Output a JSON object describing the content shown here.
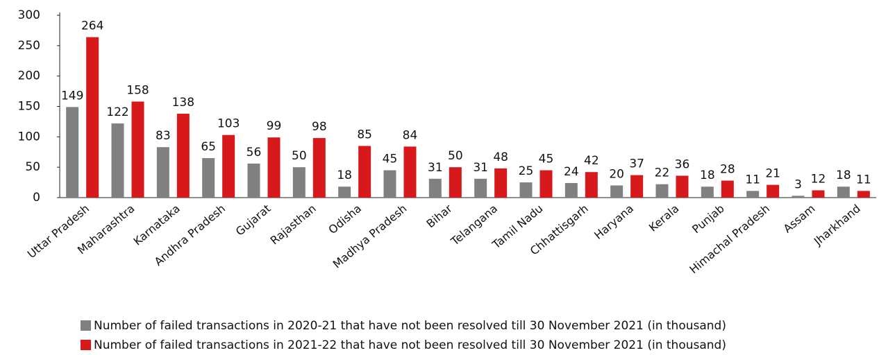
{
  "chart_data": {
    "type": "bar",
    "categories": [
      "Uttar Pradesh",
      "Maharashtra",
      "Karnataka",
      "Andhra Pradesh",
      "Gujarat",
      "Rajasthan",
      "Odisha",
      "Madhya Pradesh",
      "Bihar",
      "Telangana",
      "Tamil Nadu",
      "Chhattisgarh",
      "Haryana",
      "Kerala",
      "Punjab",
      "Himachal Pradesh",
      "Assam",
      "Jharkhand"
    ],
    "series": [
      {
        "name": "Number of failed transactions in 2020-21 that have not been resolved till 30 November 2021 (in thousand)",
        "color": "#808080",
        "values": [
          149,
          122,
          83,
          65,
          56,
          50,
          18,
          45,
          31,
          31,
          25,
          24,
          20,
          22,
          18,
          11,
          3,
          18
        ]
      },
      {
        "name": "Number of failed transactions in 2021-22 that have not been resolved till 30 November 2021 (in thousand)",
        "color": "#d7191c",
        "values": [
          264,
          158,
          138,
          103,
          99,
          98,
          85,
          84,
          50,
          48,
          45,
          42,
          37,
          36,
          28,
          21,
          12,
          11
        ]
      }
    ],
    "ylim": [
      0,
      300
    ],
    "yticks": [
      0,
      50,
      100,
      150,
      200,
      250,
      300
    ],
    "grid": false,
    "legend": "bottom"
  }
}
